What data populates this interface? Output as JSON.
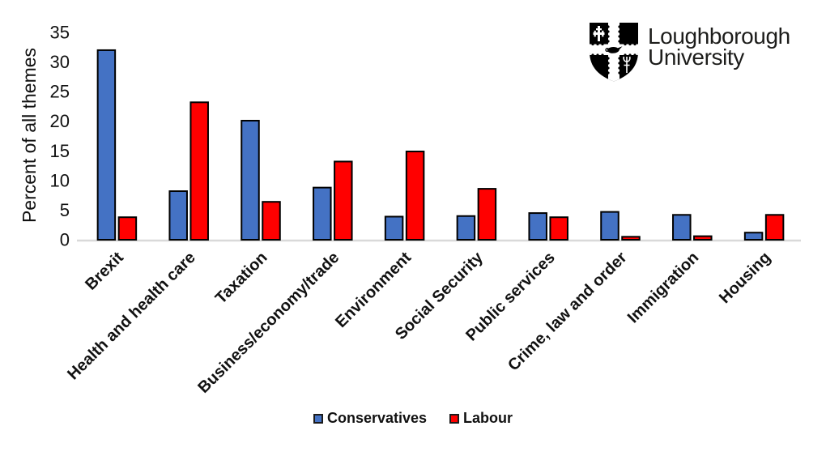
{
  "logo": {
    "name": "Loughborough University logo",
    "line1": "Loughborough",
    "line2": "University",
    "text_color": "#1d1d1b",
    "crest_color": "#000000"
  },
  "chart_data": {
    "type": "bar",
    "title": "",
    "xlabel": "",
    "ylabel": "Percent of all themes",
    "ylim": [
      0,
      35
    ],
    "yticks": [
      0,
      5,
      10,
      15,
      20,
      25,
      30,
      35
    ],
    "grid": false,
    "legend_position": "bottom",
    "categories": [
      "Brexit",
      "Health and health care",
      "Taxation",
      "Business/economy/trade",
      "Environment",
      "Social Security",
      "Public services",
      "Crime, law and order",
      "Immigration",
      "Housing"
    ],
    "series": [
      {
        "name": "Conservatives",
        "color": "#4472C4",
        "values": [
          32.0,
          8.2,
          20.1,
          8.8,
          3.9,
          4.0,
          4.5,
          4.7,
          4.2,
          1.2
        ]
      },
      {
        "name": "Labour",
        "color": "#FF0000",
        "values": [
          3.8,
          23.2,
          6.4,
          13.2,
          14.9,
          8.6,
          3.8,
          0.5,
          0.6,
          4.2
        ]
      }
    ],
    "bar_border_color": "#000000",
    "axis_line_color": "#D9D9D9",
    "tick_label_color": "#111111",
    "category_label_color": "#111111"
  }
}
